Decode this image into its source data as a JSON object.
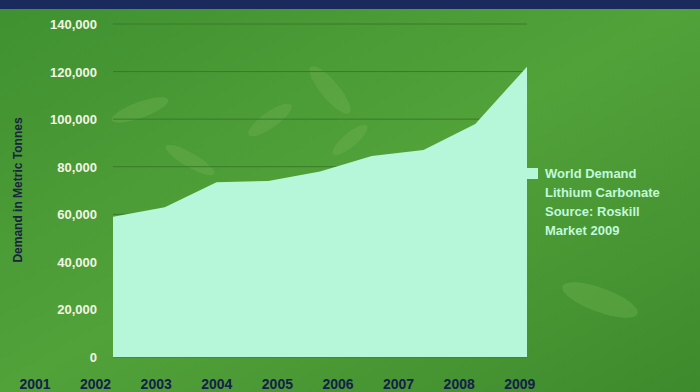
{
  "chart_data": {
    "type": "area",
    "ylabel": "Demand in Metric Tonnes",
    "categories": [
      "2001",
      "2002",
      "2003",
      "2004",
      "2005",
      "2006",
      "2007",
      "2008",
      "2009"
    ],
    "series": [
      {
        "name": "World Demand Lithium Carbonate",
        "color": "#b6f7d9",
        "values": [
          59000,
          63000,
          73500,
          74000,
          78000,
          84500,
          87000,
          98000,
          122000
        ]
      }
    ],
    "annotations": [
      "Source: Roskill Market 2009"
    ],
    "ylim": [
      0,
      140000
    ],
    "yticks": [
      0,
      {
        "value": 20000,
        "label": "20,000"
      },
      {
        "value": 40000,
        "label": "40,000"
      },
      {
        "value": 60000,
        "label": "60,000"
      },
      {
        "value": 80000,
        "label": "80,000"
      },
      {
        "value": 100000,
        "label": "100,000"
      },
      {
        "value": 120000,
        "label": "120,000"
      },
      {
        "value": 140000,
        "label": "140,000"
      }
    ],
    "grid": true,
    "legend": "right"
  }
}
